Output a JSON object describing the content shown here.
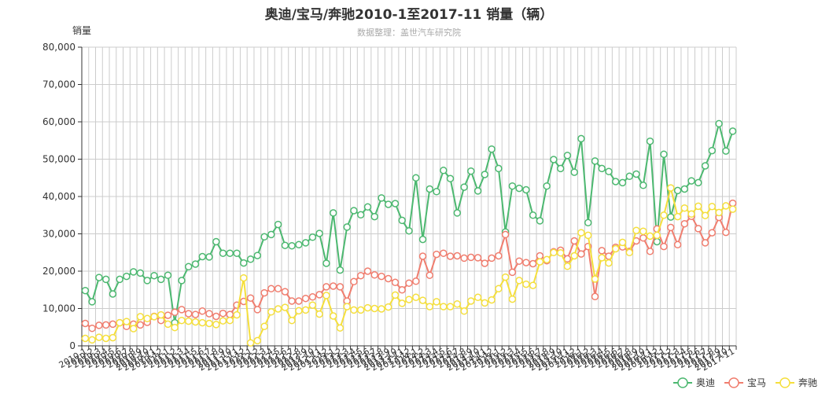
{
  "chart_data": {
    "type": "line",
    "title": "奥迪/宝马/奔驰2010-1至2017-11 销量（辆）",
    "subtitle": "数据整理：盖世汽车研究院",
    "ylabel": "销量",
    "ylim": [
      0,
      80000
    ],
    "yticks": [
      "0",
      "10,000",
      "20,000",
      "30,000",
      "40,000",
      "50,000",
      "60,000",
      "70,000",
      "80,000"
    ],
    "x_tick_labels": [
      "2010-1",
      "2010-2",
      "2010-3",
      "2010-4",
      "2010-5",
      "2010-6",
      "2010-7",
      "2010-8",
      "2010-9",
      "2010-10",
      "2010-11",
      "2010-12",
      "2011-1",
      "2011-2",
      "2011-3",
      "2011-4",
      "2011-5",
      "2011-6",
      "2011-7",
      "2011-8",
      "2011-9",
      "2011-10",
      "2011-11",
      "2011-12",
      "2012-1",
      "2012-2",
      "2012-3",
      "2012-4",
      "2012-5",
      "2012-6",
      "2012-7",
      "2012-8",
      "2012-9",
      "2012-10",
      "2012-11",
      "2012-12",
      "2013-1",
      "2013-2",
      "2013-3",
      "2013-4",
      "2013-5",
      "2013-6",
      "2013-7",
      "2013-8",
      "2013-9",
      "2013-10",
      "2013-11",
      "2013-12",
      "2014-1",
      "2014-2",
      "2014-3",
      "2014-4",
      "2014-5",
      "2014-6",
      "2014-7",
      "2014-8",
      "2014-9",
      "2014-10",
      "2014-11",
      "2014-12",
      "2015-1",
      "2015-2",
      "2015-3",
      "2015-4",
      "2015-5",
      "2015-6",
      "2015-7",
      "2015-8",
      "2015-9",
      "2015-10",
      "2015-11",
      "2015-12",
      "2016-1",
      "2016-2",
      "2016-3",
      "2016-4",
      "2016-5",
      "2016-6",
      "2016-7",
      "2016-8",
      "2016-9",
      "2016-10",
      "2016-11",
      "2016-12",
      "2017-1",
      "2017-2",
      "2017-3",
      "2017-4",
      "2017-5",
      "2017-6",
      "2017-7",
      "2017-8",
      "2017-9",
      "2017-10",
      "2017-11"
    ],
    "grid": true,
    "legend_position": "bottom-right",
    "series": [
      {
        "name": "奥迪",
        "color": "#4cb870",
        "values": [
          14800,
          11800,
          18300,
          17800,
          13900,
          17800,
          18600,
          19800,
          19500,
          17500,
          18800,
          17800,
          18900,
          6200,
          17500,
          21200,
          21900,
          23900,
          23800,
          27900,
          24800,
          24800,
          24800,
          22200,
          23200,
          24200,
          29200,
          29800,
          32500,
          26900,
          26800,
          27100,
          27600,
          29100,
          30100,
          22100,
          35600,
          20300,
          31800,
          36200,
          35100,
          37200,
          34600,
          39600,
          37900,
          38100,
          33600,
          30800,
          45000,
          28500,
          42000,
          41300,
          47000,
          44800,
          35600,
          42500,
          46800,
          41500,
          45900,
          52700,
          47500,
          30500,
          42800,
          42200,
          41800,
          35000,
          33500,
          42800,
          49900,
          47500,
          51000,
          46500,
          55500,
          33000,
          49500,
          47500,
          46700,
          44000,
          43700,
          45400,
          46000,
          43000,
          54800,
          27900,
          51300,
          34500,
          41600,
          42000,
          44200,
          43700,
          48200,
          52300,
          59500,
          52200,
          57500
        ]
      },
      {
        "name": "宝马",
        "color": "#f07d6e",
        "values": [
          6000,
          4700,
          5500,
          5600,
          5800,
          6200,
          5200,
          5800,
          5600,
          6300,
          7900,
          6800,
          8200,
          9000,
          9700,
          8600,
          8400,
          9300,
          8600,
          7900,
          8700,
          8400,
          10900,
          11900,
          12800,
          9700,
          14200,
          15300,
          15300,
          14500,
          12000,
          12000,
          12700,
          13100,
          13700,
          15800,
          16000,
          15800,
          12000,
          17200,
          18800,
          20000,
          19000,
          18600,
          18000,
          17000,
          15000,
          16800,
          17300,
          24000,
          18900,
          24500,
          24800,
          24000,
          24100,
          23500,
          23700,
          23600,
          22100,
          23500,
          24100,
          29800,
          19700,
          22700,
          22300,
          22000,
          24100,
          22800,
          25200,
          25600,
          23300,
          28100,
          24600,
          26600,
          13200,
          25500,
          24000,
          26400,
          26500,
          25300,
          28100,
          28900,
          25300,
          31300,
          26600,
          31700,
          27100,
          32700,
          34700,
          31400,
          27600,
          30300,
          34400,
          30400,
          38200
        ]
      },
      {
        "name": "奔驰",
        "color": "#f5df3c",
        "values": [
          2000,
          1600,
          2300,
          2000,
          2200,
          6200,
          6500,
          4600,
          7800,
          7300,
          7800,
          8300,
          5800,
          4900,
          6800,
          6600,
          6400,
          6200,
          6000,
          5700,
          6700,
          6800,
          8300,
          18200,
          800,
          1400,
          5200,
          9100,
          9900,
          10300,
          6800,
          9400,
          9600,
          10900,
          8500,
          13500,
          8000,
          4800,
          10500,
          9600,
          9600,
          10200,
          10000,
          9900,
          10400,
          13600,
          11400,
          12400,
          13000,
          12200,
          10500,
          11800,
          10500,
          10500,
          11200,
          9300,
          12000,
          13000,
          11500,
          12300,
          15300,
          18400,
          12500,
          17500,
          16500,
          16200,
          22500,
          23100,
          25000,
          24900,
          21300,
          24100,
          30300,
          29600,
          17900,
          23600,
          22200,
          26000,
          27700,
          25000,
          30900,
          30700,
          29400,
          29600,
          35000,
          42300,
          34600,
          36900,
          35300,
          37400,
          34900,
          37300,
          35700,
          37500,
          36600
        ]
      }
    ]
  }
}
